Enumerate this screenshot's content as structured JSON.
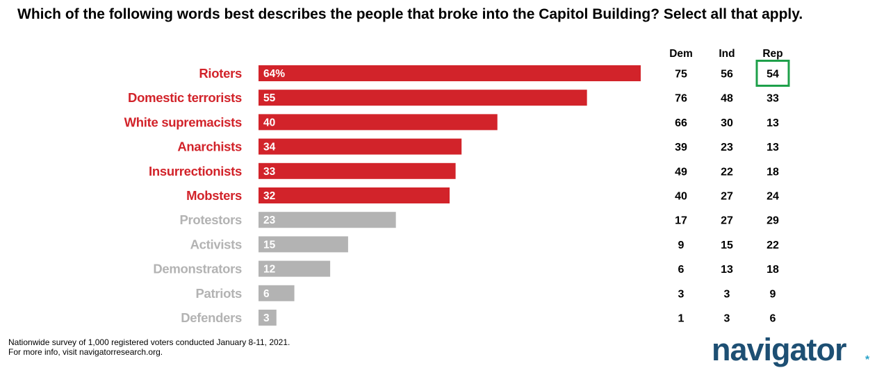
{
  "title": "Which of the following words best describes the people that broke into the Capitol Building? Select all that apply.",
  "footnote_line1": "Nationwide survey of 1,000 registered voters conducted January 8-11, 2021.",
  "footnote_line2": "For more info, visit navigatorresearch.org.",
  "brand": {
    "name": "navigator",
    "star": "*"
  },
  "colors": {
    "red": "#d2232a",
    "gray": "#b3b3b3",
    "highlight_box": "#1ea04a",
    "brand": "#1d4f73",
    "brand_star": "#2ba3c9"
  },
  "chart_data": {
    "type": "bar",
    "orientation": "horizontal",
    "categories": [
      "Rioters",
      "Domestic terrorists",
      "White supremacists",
      "Anarchists",
      "Insurrectionists",
      "Mobsters",
      "Protestors",
      "Activists",
      "Demonstrators",
      "Patriots",
      "Defenders"
    ],
    "values": [
      64,
      55,
      40,
      34,
      33,
      32,
      23,
      15,
      12,
      6,
      3
    ],
    "value_labels": [
      "64%",
      "55",
      "40",
      "34",
      "33",
      "32",
      "23",
      "15",
      "12",
      "6",
      "3"
    ],
    "bar_colors": [
      "red",
      "red",
      "red",
      "red",
      "red",
      "red",
      "gray",
      "gray",
      "gray",
      "gray",
      "gray"
    ],
    "xlim": [
      0,
      64
    ],
    "table": {
      "columns": [
        "Dem",
        "Ind",
        "Rep"
      ],
      "rows": [
        [
          "75",
          "56",
          "54"
        ],
        [
          "76",
          "48",
          "33"
        ],
        [
          "66",
          "30",
          "13"
        ],
        [
          "39",
          "23",
          "13"
        ],
        [
          "49",
          "22",
          "18"
        ],
        [
          "40",
          "27",
          "24"
        ],
        [
          "17",
          "27",
          "29"
        ],
        [
          "9",
          "15",
          "22"
        ],
        [
          "6",
          "13",
          "18"
        ],
        [
          "3",
          "3",
          "9"
        ],
        [
          "1",
          "3",
          "6"
        ]
      ],
      "highlight": {
        "row": 0,
        "column": 2
      }
    }
  }
}
